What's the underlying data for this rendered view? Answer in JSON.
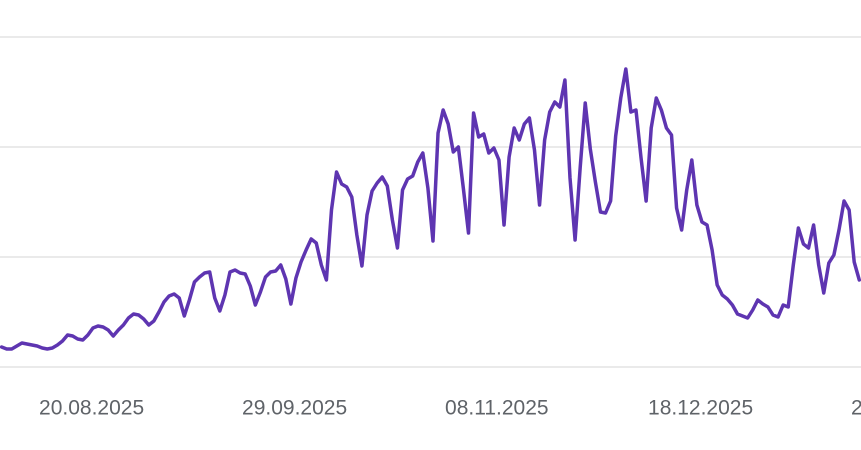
{
  "chart_data": {
    "type": "line",
    "categories": [
      null,
      null,
      null,
      null,
      null,
      null,
      null,
      null,
      null,
      null,
      null,
      null,
      null,
      null,
      null,
      null,
      null,
      null,
      null,
      "20.08.2025",
      null,
      null,
      null,
      null,
      null,
      null,
      null,
      null,
      null,
      null,
      null,
      null,
      null,
      null,
      null,
      null,
      null,
      null,
      null,
      null,
      null,
      null,
      null,
      null,
      null,
      null,
      null,
      null,
      null,
      null,
      null,
      null,
      null,
      null,
      null,
      null,
      null,
      null,
      null,
      "29.09.2025",
      null,
      null,
      null,
      null,
      null,
      null,
      null,
      null,
      null,
      null,
      null,
      null,
      null,
      null,
      null,
      null,
      null,
      null,
      null,
      null,
      null,
      null,
      null,
      null,
      null,
      null,
      null,
      null,
      null,
      null,
      null,
      null,
      null,
      null,
      null,
      null,
      null,
      null,
      null,
      "08.11.2025",
      null,
      null,
      null,
      null,
      null,
      null,
      null,
      null,
      null,
      null,
      null,
      null,
      null,
      null,
      null,
      null,
      null,
      null,
      null,
      null,
      null,
      null,
      null,
      null,
      null,
      null,
      null,
      null,
      null,
      null,
      null,
      null,
      null,
      null,
      null,
      null,
      null,
      null,
      null,
      "18.12.2025",
      null,
      null,
      null,
      null,
      null,
      null,
      null,
      null,
      null,
      null,
      null,
      null,
      null,
      null,
      null,
      null,
      null,
      null,
      null,
      null,
      null,
      null,
      null,
      null,
      null,
      null,
      null,
      null,
      null,
      null,
      null,
      null,
      null,
      null,
      null,
      null,
      null,
      null,
      null,
      "2"
    ],
    "series": [
      {
        "color": "#5e35b1",
        "values": [
          20,
          18,
          18,
          21,
          24,
          23,
          22,
          21,
          19,
          18,
          19,
          22,
          26,
          32,
          31,
          28,
          27,
          32,
          39,
          41,
          40,
          37,
          31,
          37,
          42,
          49,
          53,
          52,
          48,
          42,
          46,
          55,
          65,
          71,
          73,
          69,
          51,
          67,
          85,
          90,
          94,
          95,
          69,
          56,
          72,
          95,
          97,
          94,
          93,
          81,
          62,
          75,
          90,
          95,
          96,
          102,
          88,
          63,
          89,
          105,
          117,
          128,
          124,
          102,
          87,
          157,
          195,
          183,
          180,
          170,
          132,
          101,
          152,
          176,
          184,
          190,
          181,
          147,
          119,
          177,
          188,
          191,
          205,
          214,
          179,
          126,
          234,
          257,
          243,
          215,
          220,
          178,
          134,
          254,
          230,
          233,
          214,
          219,
          207,
          142,
          210,
          239,
          227,
          243,
          249,
          217,
          162,
          227,
          255,
          265,
          260,
          287,
          189,
          127,
          199,
          264,
          218,
          185,
          155,
          154,
          166,
          231,
          269,
          298,
          255,
          257,
          209,
          166,
          239,
          269,
          257,
          239,
          232,
          159,
          137,
          177,
          207,
          162,
          145,
          142,
          117,
          82,
          72,
          68,
          62,
          53,
          51,
          49,
          57,
          67,
          63,
          60,
          52,
          50,
          62,
          60,
          102,
          139,
          123,
          119,
          142,
          102,
          74,
          104,
          112,
          137,
          166,
          157,
          105,
          87,
          null,
          null,
          null,
          null,
          null,
          null,
          null,
          null,
          null,
          null
        ]
      }
    ],
    "ylim": [
      0,
      330
    ],
    "ygrid": [
      0,
      110,
      220,
      330
    ],
    "grid": true
  }
}
